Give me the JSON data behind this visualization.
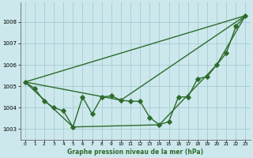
{
  "title": "Graphe pression niveau de la mer (hPa)",
  "bg_color": "#cce8ec",
  "grid_color": "#aad0d8",
  "line_color": "#2d6b2d",
  "x_ticks": [
    0,
    1,
    2,
    3,
    4,
    5,
    6,
    7,
    8,
    9,
    10,
    11,
    12,
    13,
    14,
    15,
    16,
    17,
    18,
    19,
    20,
    21,
    22,
    23
  ],
  "y_ticks": [
    1003,
    1004,
    1005,
    1006,
    1007,
    1008
  ],
  "ylim": [
    1002.5,
    1008.9
  ],
  "xlim": [
    -0.5,
    23.5
  ],
  "main_x": [
    0,
    1,
    2,
    3,
    4,
    5,
    6,
    7,
    8,
    9,
    10,
    11,
    12,
    13,
    14,
    15,
    16,
    17,
    18,
    19,
    20,
    21,
    22,
    23
  ],
  "main_y": [
    1005.2,
    1004.9,
    1004.3,
    1004.0,
    1003.85,
    1003.1,
    1004.5,
    1003.7,
    1004.5,
    1004.55,
    1004.35,
    1004.3,
    1004.3,
    1003.55,
    1003.2,
    1003.35,
    1004.5,
    1004.5,
    1005.35,
    1005.45,
    1006.0,
    1006.55,
    1007.8,
    1008.3
  ],
  "line1_x": [
    0,
    23
  ],
  "line1_y": [
    1005.2,
    1008.3
  ],
  "line2_x": [
    0,
    10,
    23
  ],
  "line2_y": [
    1005.2,
    1004.35,
    1008.3
  ],
  "line3_x": [
    0,
    5,
    14,
    20,
    23
  ],
  "line3_y": [
    1005.2,
    1003.1,
    1003.2,
    1006.0,
    1008.3
  ],
  "marker": "D",
  "markersize": 2.8,
  "linewidth": 1.0
}
